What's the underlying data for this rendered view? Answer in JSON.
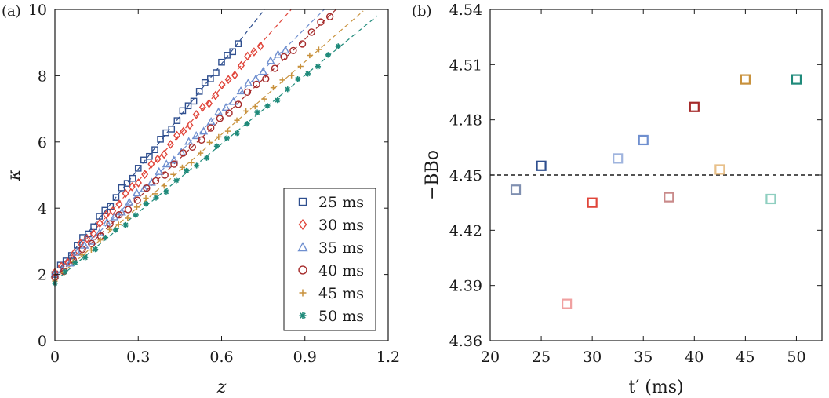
{
  "chart_data": [
    {
      "panel_label": "(a)",
      "type": "scatter",
      "xlabel": "z",
      "ylabel": "κ",
      "xlim": [
        0,
        1.2
      ],
      "ylim": [
        0,
        10
      ],
      "xticks": [
        "0",
        "0.3",
        "0.6",
        "0.9",
        "1.2"
      ],
      "yticks": [
        "0",
        "2",
        "4",
        "6",
        "8",
        "10"
      ],
      "legend_position": "bottom-right",
      "series": [
        {
          "name": "25 ms",
          "marker": "square",
          "color": "#2f4f8f",
          "intercept": 2.0,
          "slope": 10.6,
          "xmax": 0.66,
          "fit_xmax": 0.78
        },
        {
          "name": "30 ms",
          "marker": "diamond",
          "color": "#e0453a",
          "intercept": 2.0,
          "slope": 9.4,
          "xmax": 0.74,
          "fit_xmax": 0.85
        },
        {
          "name": "35 ms",
          "marker": "triangle",
          "color": "#6f8fcf",
          "intercept": 1.95,
          "slope": 8.3,
          "xmax": 0.83,
          "fit_xmax": 0.97
        },
        {
          "name": "40 ms",
          "marker": "circle",
          "color": "#a52a2a",
          "intercept": 1.9,
          "slope": 8.0,
          "xmax": 0.99,
          "fit_xmax": 1.02
        },
        {
          "name": "45 ms",
          "marker": "plus",
          "color": "#c8913c",
          "intercept": 1.85,
          "slope": 7.3,
          "xmax": 0.95,
          "fit_xmax": 1.11
        },
        {
          "name": "50 ms",
          "marker": "asterisk",
          "color": "#1f8a7a",
          "intercept": 1.8,
          "slope": 6.9,
          "xmax": 1.02,
          "fit_xmax": 1.16
        }
      ]
    },
    {
      "panel_label": "(b)",
      "type": "scatter",
      "xlabel": "t′ (ms)",
      "ylabel": "−BBo",
      "xlim": [
        20,
        52.5
      ],
      "ylim": [
        4.36,
        4.54
      ],
      "xticks": [
        "20",
        "25",
        "30",
        "35",
        "40",
        "45",
        "50"
      ],
      "yticks": [
        "4.36",
        "4.39",
        "4.42",
        "4.45",
        "4.48",
        "4.51",
        "4.54"
      ],
      "reference_line": 4.45,
      "points": [
        {
          "x": 22.5,
          "y": 4.442,
          "color": "#7f8fb0"
        },
        {
          "x": 25,
          "y": 4.455,
          "color": "#2f4f8f"
        },
        {
          "x": 27.5,
          "y": 4.38,
          "color": "#f0a0a0"
        },
        {
          "x": 30,
          "y": 4.435,
          "color": "#e0453a"
        },
        {
          "x": 32.5,
          "y": 4.459,
          "color": "#9fb4de"
        },
        {
          "x": 35,
          "y": 4.469,
          "color": "#6f8fcf"
        },
        {
          "x": 37.5,
          "y": 4.438,
          "color": "#c98a8a"
        },
        {
          "x": 40,
          "y": 4.487,
          "color": "#a52a2a"
        },
        {
          "x": 42.5,
          "y": 4.453,
          "color": "#e8c08a"
        },
        {
          "x": 45,
          "y": 4.502,
          "color": "#c8913c"
        },
        {
          "x": 47.5,
          "y": 4.437,
          "color": "#8fcfc0"
        },
        {
          "x": 50,
          "y": 4.502,
          "color": "#1f8a7a"
        }
      ]
    }
  ]
}
